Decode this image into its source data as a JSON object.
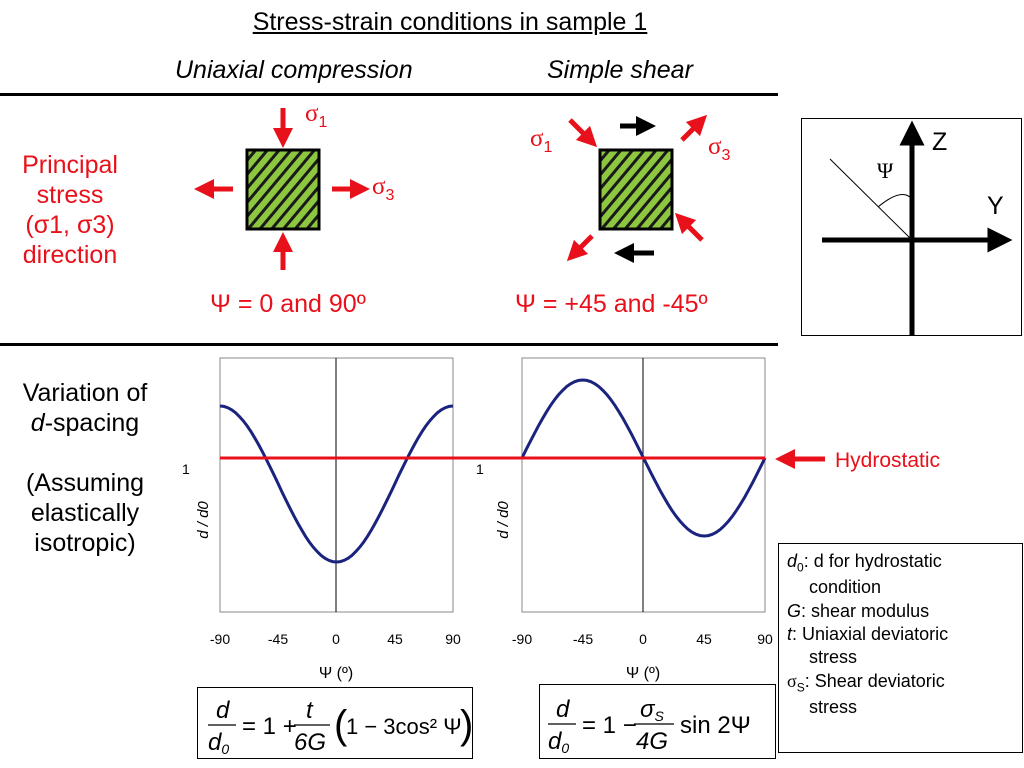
{
  "title": "Stress-strain conditions in sample 1",
  "col_uniaxial": "Uniaxial compression",
  "col_shear": "Simple shear",
  "row1_label": [
    "Principal",
    "stress",
    "(σ1, σ3)",
    "direction"
  ],
  "row2_label": {
    "line1": "Variation of",
    "d_italic": "d",
    "line2_rest": "-spacing",
    "line3": "(Assuming",
    "line4": "elastically",
    "line5": "isotropic)"
  },
  "uniaxial": {
    "sigma1": "σ",
    "sigma1_sub": "1",
    "sigma3": "σ",
    "sigma3_sub": "3",
    "psi_label": "Ψ = 0 and 90º"
  },
  "shear": {
    "sigma1": "σ",
    "sigma1_sub": "1",
    "sigma3": "σ",
    "sigma3_sub": "3",
    "psi_label": "Ψ = +45 and -45º"
  },
  "axes_diagram": {
    "z_label": "Z",
    "y_label": "Y",
    "psi_symbol": "Ψ"
  },
  "hydrostatic_label": "Hydrostatic",
  "legend": [
    {
      "sym": "d",
      "sub": "0",
      "text": ": d for hydrostatic",
      "cont": "condition"
    },
    {
      "sym": "G",
      "sub": "",
      "text": ": shear modulus",
      "cont": ""
    },
    {
      "sym": "t",
      "sub": "",
      "text": ": Uniaxial deviatoric",
      "cont": "stress"
    },
    {
      "sym": "σ",
      "sub": "S",
      "text": ": Shear deviatoric",
      "cont": "stress"
    }
  ],
  "colors": {
    "red": "#e8101a",
    "curve": "#1a237e",
    "sample_green": "#8dc63f"
  },
  "chart_data": [
    {
      "type": "line",
      "title": "",
      "xlabel": "Ψ (º)",
      "ylabel": "d / d0",
      "x_ticks": [
        "-90",
        "-45",
        "0",
        "45",
        "90"
      ],
      "y_tick": "1",
      "xlim": [
        -90,
        90
      ],
      "series": [
        {
          "formula": "d/d0 = 1 + t/(6G) (1 - 3cos²Ψ)"
        }
      ],
      "reference_line": {
        "y": 1,
        "label": "Hydrostatic"
      }
    },
    {
      "type": "line",
      "title": "",
      "xlabel": "Ψ (º)",
      "ylabel": "d / d0",
      "x_ticks": [
        "-90",
        "-45",
        "0",
        "45",
        "90"
      ],
      "y_tick": "1",
      "xlim": [
        -90,
        90
      ],
      "series": [
        {
          "formula": "d/d0 = 1 - σS/(4G) sin 2Ψ"
        }
      ],
      "reference_line": {
        "y": 1,
        "label": "Hydrostatic"
      }
    }
  ],
  "eq1": {
    "lhs_num": "d",
    "lhs_den": "d",
    "lhs_den_sub": "0",
    "eq": "= 1 +",
    "frac_num": "t",
    "frac_den": "6G",
    "rest": "1 − 3cos² Ψ"
  },
  "eq2": {
    "lhs_num": "d",
    "lhs_den": "d",
    "lhs_den_sub": "0",
    "eq": "= 1 −",
    "frac_num": "σ",
    "frac_num_sub": "S",
    "frac_den": "4G",
    "rest": "sin 2Ψ"
  }
}
